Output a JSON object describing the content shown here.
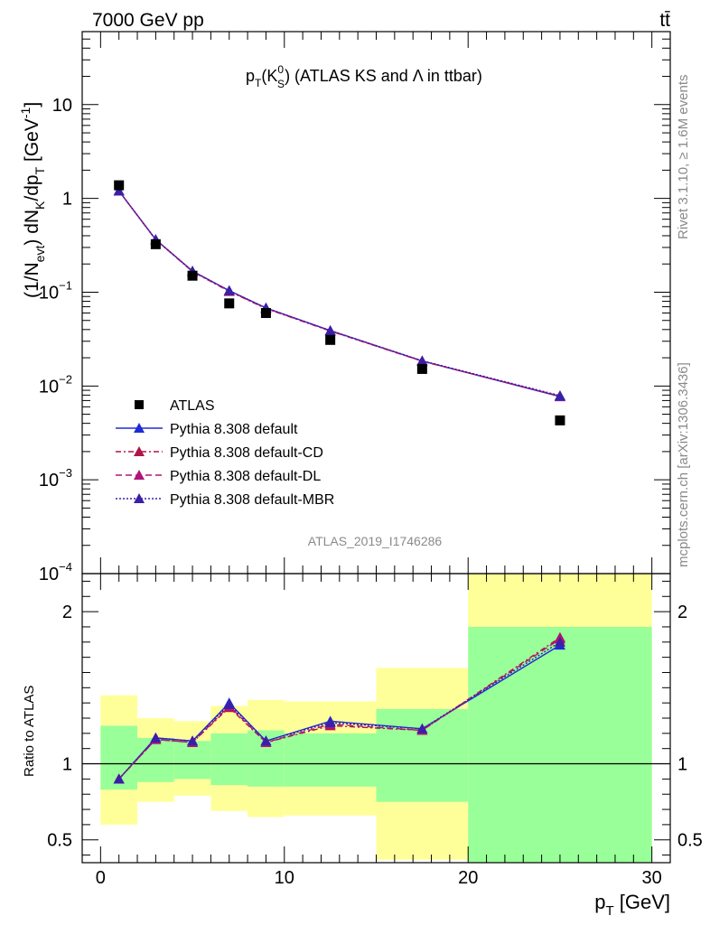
{
  "header": {
    "energy_label": "7000 GeV pp",
    "process_label": "tt̄",
    "rivet_label": "Rivet 3.1.10, ≥ 1.6M events",
    "mcplots_label": "mcplots.cern.ch [arXiv:1306.3436]",
    "analysis_id": "ATLAS_2019_I1746286"
  },
  "colors": {
    "data": "#000000",
    "default": "#1f2bd6",
    "default_cd": "#b0144a",
    "default_dl": "#b0147a",
    "default_mbr": "#3a1fa8",
    "band_green": "#99ff99",
    "band_yellow": "#ffff99"
  },
  "chart_data": [
    {
      "type": "scatter",
      "title": "p_T(K_S^0) (ATLAS KS and Λ in ttbar)",
      "title_parts": {
        "pre": "p",
        "sub1": "T",
        "open": "(K",
        "sup": "0",
        "sub2": "S",
        "post": ") (ATLAS KS and Λ in ttbar)"
      },
      "ylabel": "(1/N_evt) dN_K/dp_T [GeV^-1]",
      "ylabel_parts": {
        "a": "(1/N",
        "s1": "evt",
        "b": ") dN",
        "s2": "K",
        "c": "/dp",
        "s3": "T",
        "d": " [GeV",
        "sup": "-1",
        "e": "]"
      },
      "yscale": "log",
      "ylim": [
        0.0001,
        60
      ],
      "xlim": [
        -1,
        31
      ],
      "y_ticks": [
        {
          "value": 0.0001,
          "base": "10",
          "exp": "−4"
        },
        {
          "value": 0.001,
          "base": "10",
          "exp": "−3"
        },
        {
          "value": 0.01,
          "base": "10",
          "exp": "−2"
        },
        {
          "value": 0.1,
          "base": "10",
          "exp": "−1"
        },
        {
          "value": 1,
          "base": "1",
          "exp": ""
        },
        {
          "value": 10,
          "base": "10",
          "exp": ""
        }
      ],
      "legend_position": "bottom-left",
      "data_series": {
        "name": "ATLAS",
        "points": [
          {
            "x": 1,
            "y": 1.38,
            "xlo": 0,
            "xhi": 2
          },
          {
            "x": 3,
            "y": 0.325,
            "xlo": 2,
            "xhi": 4
          },
          {
            "x": 5,
            "y": 0.15,
            "xlo": 4,
            "xhi": 6
          },
          {
            "x": 7,
            "y": 0.076,
            "xlo": 6,
            "xhi": 8
          },
          {
            "x": 9,
            "y": 0.06,
            "xlo": 8,
            "xhi": 10
          },
          {
            "x": 12.5,
            "y": 0.031,
            "xlo": 10,
            "xhi": 15
          },
          {
            "x": 17.5,
            "y": 0.0152,
            "xlo": 15,
            "xhi": 20
          },
          {
            "x": 25,
            "y": 0.0043,
            "xlo": 20,
            "xhi": 30
          }
        ]
      },
      "series": [
        {
          "name": "Pythia 8.308 default",
          "style": "solid",
          "color_key": "default",
          "x": [
            1,
            3,
            5,
            7,
            9,
            12.5,
            17.5,
            25
          ],
          "y": [
            1.2,
            0.365,
            0.168,
            0.104,
            0.068,
            0.039,
            0.0185,
            0.0077
          ]
        },
        {
          "name": "Pythia 8.308 default-CD",
          "style": "dashdot",
          "color_key": "default_cd",
          "x": [
            1,
            3,
            5,
            7,
            9,
            12.5,
            17.5,
            25
          ],
          "y": [
            1.2,
            0.362,
            0.166,
            0.102,
            0.067,
            0.0385,
            0.0184,
            0.0078
          ]
        },
        {
          "name": "Pythia 8.308 default-DL",
          "style": "dashed",
          "color_key": "default_dl",
          "x": [
            1,
            3,
            5,
            7,
            9,
            12.5,
            17.5,
            25
          ],
          "y": [
            1.2,
            0.363,
            0.167,
            0.103,
            0.0675,
            0.0388,
            0.0184,
            0.0078
          ]
        },
        {
          "name": "Pythia 8.308 default-MBR",
          "style": "dotted",
          "color_key": "default_mbr",
          "x": [
            1,
            3,
            5,
            7,
            9,
            12.5,
            17.5,
            25
          ],
          "y": [
            1.2,
            0.364,
            0.168,
            0.104,
            0.068,
            0.039,
            0.0186,
            0.0079
          ]
        }
      ]
    },
    {
      "type": "line",
      "ylabel": "Ratio to ATLAS",
      "xlabel": "p_T [GeV]",
      "xlabel_parts": {
        "pre": "p",
        "sub": "T",
        "post": " [GeV]"
      },
      "xlim": [
        -1,
        31
      ],
      "ylim": [
        0.35,
        2.25
      ],
      "x_ticks": [
        0,
        10,
        20,
        30
      ],
      "y_ticks": [
        0.5,
        1,
        2
      ],
      "y_tick_labels": [
        "0.5",
        "1",
        "2"
      ],
      "x_tick_labels": [
        "0",
        "10",
        "20",
        "30"
      ],
      "bands": [
        {
          "xlo": 0,
          "xhi": 2,
          "green_lo": 0.83,
          "green_hi": 1.25,
          "yellow_lo": 0.6,
          "yellow_hi": 1.45
        },
        {
          "xlo": 2,
          "xhi": 4,
          "green_lo": 0.88,
          "green_hi": 1.17,
          "yellow_lo": 0.75,
          "yellow_hi": 1.3
        },
        {
          "xlo": 4,
          "xhi": 6,
          "green_lo": 0.9,
          "green_hi": 1.15,
          "yellow_lo": 0.79,
          "yellow_hi": 1.28
        },
        {
          "xlo": 6,
          "xhi": 8,
          "green_lo": 0.86,
          "green_hi": 1.2,
          "yellow_lo": 0.69,
          "yellow_hi": 1.38
        },
        {
          "xlo": 8,
          "xhi": 10,
          "green_lo": 0.85,
          "green_hi": 1.22,
          "yellow_lo": 0.65,
          "yellow_hi": 1.42
        },
        {
          "xlo": 10,
          "xhi": 15,
          "green_lo": 0.85,
          "green_hi": 1.2,
          "yellow_lo": 0.66,
          "yellow_hi": 1.41
        },
        {
          "xlo": 15,
          "xhi": 20,
          "green_lo": 0.75,
          "green_hi": 1.36,
          "yellow_lo": 0.37,
          "yellow_hi": 1.63
        },
        {
          "xlo": 20,
          "xhi": 30,
          "green_lo": 0.35,
          "green_hi": 1.9,
          "yellow_lo": 0.35,
          "yellow_hi": 2.25
        }
      ],
      "series": [
        {
          "name": "Pythia 8.308 default",
          "style": "solid",
          "color_key": "default",
          "x": [
            1,
            3,
            5,
            7,
            9,
            12.5,
            17.5,
            25
          ],
          "y": [
            0.9,
            1.17,
            1.15,
            1.4,
            1.15,
            1.28,
            1.23,
            1.78
          ]
        },
        {
          "name": "Pythia 8.308 default-CD",
          "style": "dashdot",
          "color_key": "default_cd",
          "x": [
            1,
            3,
            5,
            7,
            9,
            12.5,
            17.5,
            25
          ],
          "y": [
            0.9,
            1.16,
            1.14,
            1.37,
            1.14,
            1.25,
            1.22,
            1.83
          ]
        },
        {
          "name": "Pythia 8.308 default-DL",
          "style": "dashed",
          "color_key": "default_dl",
          "x": [
            1,
            3,
            5,
            7,
            9,
            12.5,
            17.5,
            25
          ],
          "y": [
            0.9,
            1.16,
            1.14,
            1.38,
            1.14,
            1.26,
            1.22,
            1.82
          ]
        },
        {
          "name": "Pythia 8.308 default-MBR",
          "style": "dotted",
          "color_key": "default_mbr",
          "x": [
            1,
            3,
            5,
            7,
            9,
            12.5,
            17.5,
            25
          ],
          "y": [
            0.9,
            1.17,
            1.15,
            1.39,
            1.15,
            1.27,
            1.23,
            1.8
          ]
        }
      ]
    }
  ]
}
